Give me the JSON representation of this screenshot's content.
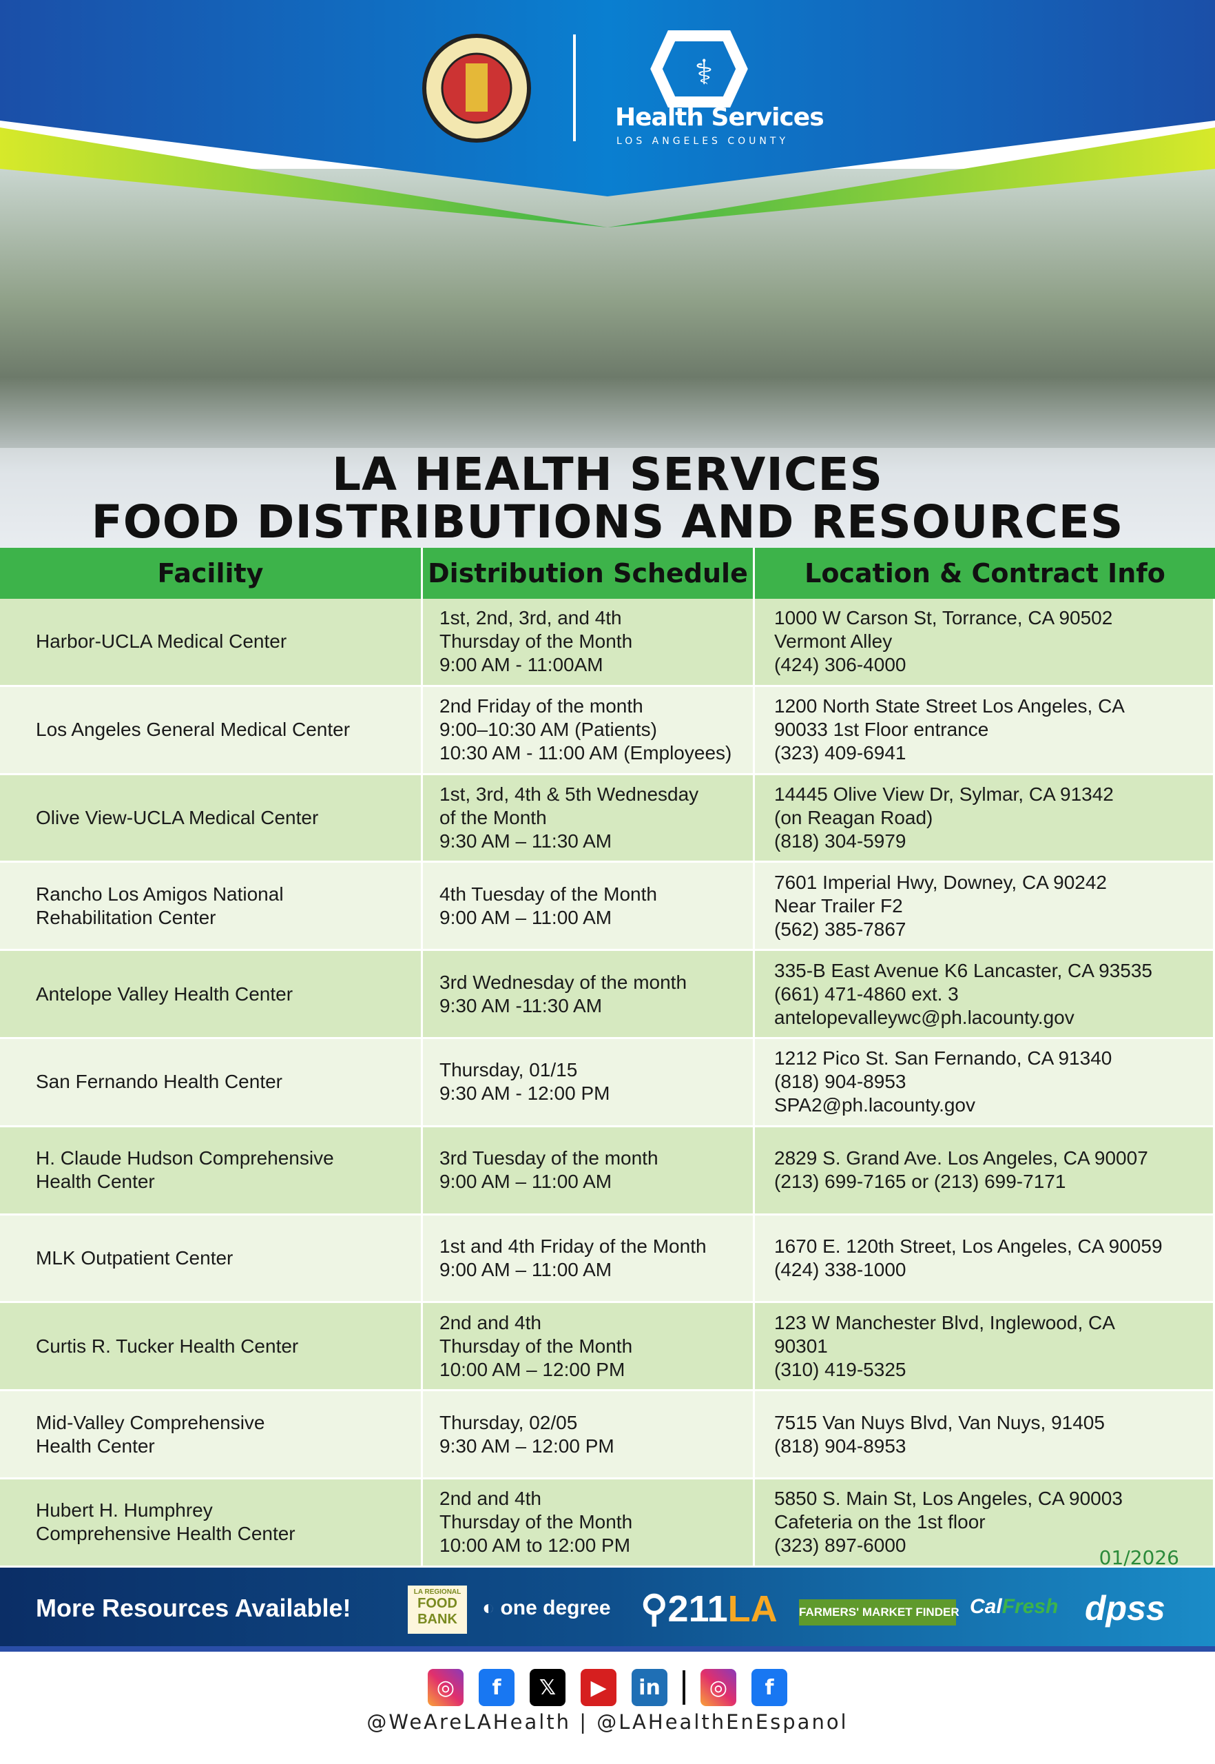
{
  "header": {
    "seal_text": "COUNTY OF LOS ANGELES CALIFORNIA",
    "brand_name": "Health Services",
    "brand_sub": "LOS ANGELES COUNTY"
  },
  "title": {
    "line1": "LA HEALTH SERVICES",
    "line2": "FOOD DISTRIBUTIONS AND RESOURCES"
  },
  "table": {
    "headers": [
      "Facility",
      "Distribution Schedule",
      "Location & Contract Info"
    ],
    "rows": [
      {
        "facility": [
          "Harbor-UCLA Medical Center"
        ],
        "schedule": [
          "1st, 2nd, 3rd, and 4th",
          "Thursday of the Month",
          "9:00 AM - 11:00AM"
        ],
        "location": [
          "1000 W Carson St, Torrance, CA 90502",
          "Vermont Alley",
          "(424) 306-4000"
        ]
      },
      {
        "facility": [
          "Los Angeles General Medical Center"
        ],
        "schedule": [
          "2nd Friday of the month",
          "9:00–10:30 AM (Patients)",
          "10:30 AM - 11:00 AM (Employees)"
        ],
        "location": [
          "1200 North State Street Los Angeles, CA",
          "90033 1st Floor entrance",
          "(323) 409-6941"
        ]
      },
      {
        "facility": [
          "Olive View-UCLA Medical Center"
        ],
        "schedule": [
          "1st, 3rd, 4th & 5th Wednesday",
          "of the Month",
          "9:30 AM – 11:30 AM"
        ],
        "location": [
          "14445 Olive View Dr, Sylmar, CA 91342",
          "(on Reagan Road)",
          "(818) 304-5979"
        ]
      },
      {
        "facility": [
          "Rancho Los Amigos National",
          "Rehabilitation Center"
        ],
        "schedule": [
          "4th Tuesday of the Month",
          "9:00 AM – 11:00 AM"
        ],
        "location": [
          "7601 Imperial Hwy, Downey, CA 90242",
          "Near Trailer F2",
          "(562) 385-7867"
        ]
      },
      {
        "facility": [
          "Antelope Valley Health Center"
        ],
        "schedule": [
          "3rd Wednesday of the month",
          "9:30 AM -11:30 AM"
        ],
        "location": [
          "335-B East Avenue K6 Lancaster, CA 93535",
          "(661) 471-4860 ext. 3",
          "antelopevalleywc@ph.lacounty.gov"
        ]
      },
      {
        "facility": [
          "San Fernando Health Center"
        ],
        "schedule": [
          "Thursday, 01/15",
          "9:30 AM - 12:00 PM"
        ],
        "location": [
          "1212 Pico St. San Fernando, CA 91340",
          "(818) 904-8953",
          "SPA2@ph.lacounty.gov"
        ]
      },
      {
        "facility": [
          "H. Claude Hudson Comprehensive",
          "Health Center"
        ],
        "schedule": [
          "3rd Tuesday of the month",
          "9:00 AM – 11:00 AM"
        ],
        "location": [
          "2829 S. Grand Ave. Los Angeles, CA 90007",
          "(213) 699-7165 or (213) 699-7171"
        ]
      },
      {
        "facility": [
          "MLK Outpatient Center"
        ],
        "schedule": [
          "1st and 4th Friday of the Month",
          "9:00 AM – 11:00 AM"
        ],
        "location": [
          "1670 E. 120th Street, Los Angeles, CA 90059",
          "(424) 338-1000"
        ]
      },
      {
        "facility": [
          "Curtis R. Tucker Health Center"
        ],
        "schedule": [
          "2nd and 4th",
          "Thursday of the Month",
          "10:00 AM – 12:00 PM"
        ],
        "location": [
          "123 W Manchester Blvd, Inglewood, CA",
          "90301",
          "(310) 419-5325"
        ]
      },
      {
        "facility": [
          "Mid-Valley Comprehensive",
          "Health Center"
        ],
        "schedule": [
          "Thursday, 02/05",
          "9:30 AM – 12:00 PM"
        ],
        "location": [
          "7515 Van Nuys Blvd, Van Nuys, 91405",
          "(818) 904-8953"
        ]
      },
      {
        "facility": [
          "Hubert H. Humphrey",
          "Comprehensive Health Center"
        ],
        "schedule": [
          "2nd and 4th",
          "Thursday of the Month",
          "10:00 AM to 12:00 PM"
        ],
        "location": [
          "5850 S. Main St, Los Angeles, CA 90003",
          "Cafeteria on the 1st floor",
          "(323) 897-6000"
        ]
      }
    ]
  },
  "date_stamp": "01/2026",
  "footer": {
    "more_label": "More Resources Available!",
    "logos": [
      "LOS ANGELES REGIONAL FOOD BANK",
      "one degree",
      "211LA",
      "FARMERS' MARKET FINDER",
      "CalFresh FOOD",
      "dpss"
    ]
  },
  "social": {
    "icons": [
      "instagram-icon",
      "facebook-icon",
      "x-icon",
      "youtube-icon",
      "linkedin-icon",
      "instagram-icon",
      "facebook-icon"
    ],
    "handles": "@WeAreLAHealth | @LAHealthEnEspanol"
  },
  "colors": {
    "header_blue": "#0a5fb8",
    "green": "#3db34a",
    "row_dark": "#d6e9c0",
    "row_light": "#eef5e4",
    "footer_blue": "#0f4f8c"
  }
}
